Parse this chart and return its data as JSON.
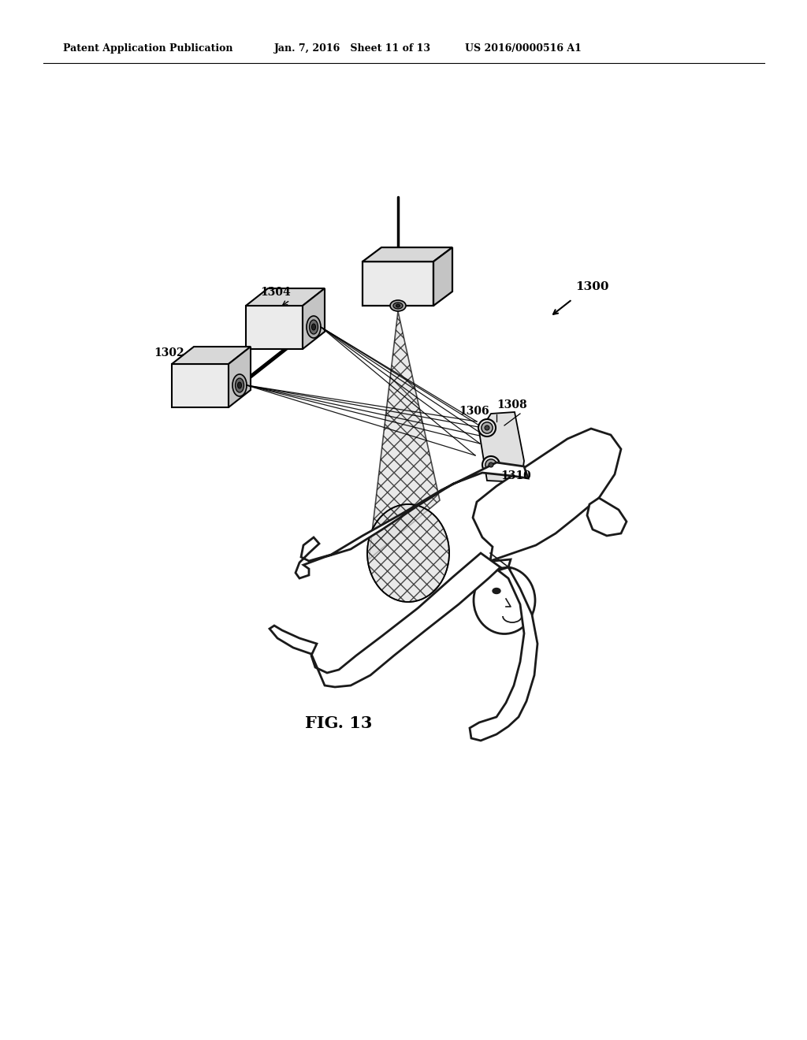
{
  "bg_color": "#ffffff",
  "header_left": "Patent Application Publication",
  "header_mid": "Jan. 7, 2016   Sheet 11 of 13",
  "header_right": "US 2016/0000516 A1",
  "caption": "FIG. 13",
  "label_1300": "1300",
  "label_1302": "1302",
  "label_1304": "1304",
  "label_1306": "1306",
  "label_1308": "1308",
  "label_1310": "1310"
}
